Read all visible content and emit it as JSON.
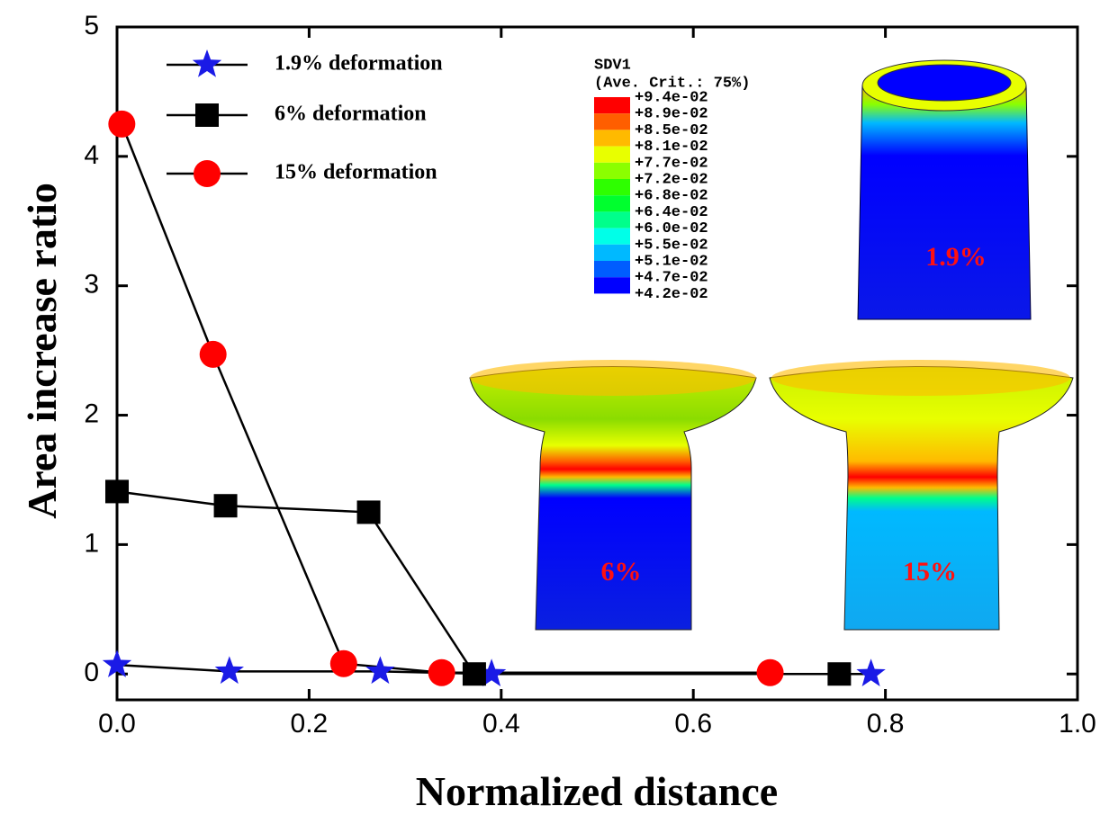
{
  "chart_data": {
    "type": "line",
    "xlabel": "Normalized distance",
    "ylabel": "Area increase ratio",
    "xlim": [
      0,
      1
    ],
    "ylim": [
      -0.2,
      5
    ],
    "xticks": [
      {
        "value": 0,
        "label": "0.0"
      },
      0.2,
      0.4,
      0.6,
      0.8,
      {
        "value": 1,
        "label": "1.0"
      }
    ],
    "yticks": [
      0,
      1,
      2,
      3,
      4,
      5
    ],
    "legend": "upper-left",
    "series": [
      {
        "name": "1.9% deformation",
        "color": "#1a1ae6",
        "marker": "star",
        "x": [
          0,
          0.117,
          0.274,
          0.39,
          0.785
        ],
        "values": [
          0.07,
          0.02,
          0.02,
          0.0,
          0.0
        ]
      },
      {
        "name": "6% deformation",
        "color": "#000000",
        "marker": "square",
        "x": [
          0,
          0.113,
          0.262,
          0.372,
          0.752
        ],
        "values": [
          1.41,
          1.3,
          1.25,
          0.0,
          0.0
        ]
      },
      {
        "name": "15% deformation",
        "color": "#ff0000",
        "marker": "circle",
        "x": [
          0.005,
          0.1,
          0.236,
          0.338,
          0.68
        ],
        "values": [
          4.25,
          2.47,
          0.08,
          0.01,
          0.01
        ]
      }
    ],
    "inset": {
      "contour_title": "SDV1",
      "contour_subtitle": "(Ave. Crit.: 75%)",
      "contour_levels": [
        "+9.4e-02",
        "+8.9e-02",
        "+8.5e-02",
        "+8.1e-02",
        "+7.7e-02",
        "+7.2e-02",
        "+6.8e-02",
        "+6.4e-02",
        "+6.0e-02",
        "+5.5e-02",
        "+5.1e-02",
        "+4.7e-02",
        "+4.2e-02"
      ],
      "contour_colors": [
        "#ff0000",
        "#ff5e00",
        "#ffba00",
        "#e8ff00",
        "#8bff00",
        "#2eff00",
        "#00ff2e",
        "#00ff8b",
        "#00ffe8",
        "#00b9ff",
        "#005dff",
        "#0000ff"
      ],
      "labels": [
        "1.9%",
        "6%",
        "15%"
      ]
    }
  }
}
